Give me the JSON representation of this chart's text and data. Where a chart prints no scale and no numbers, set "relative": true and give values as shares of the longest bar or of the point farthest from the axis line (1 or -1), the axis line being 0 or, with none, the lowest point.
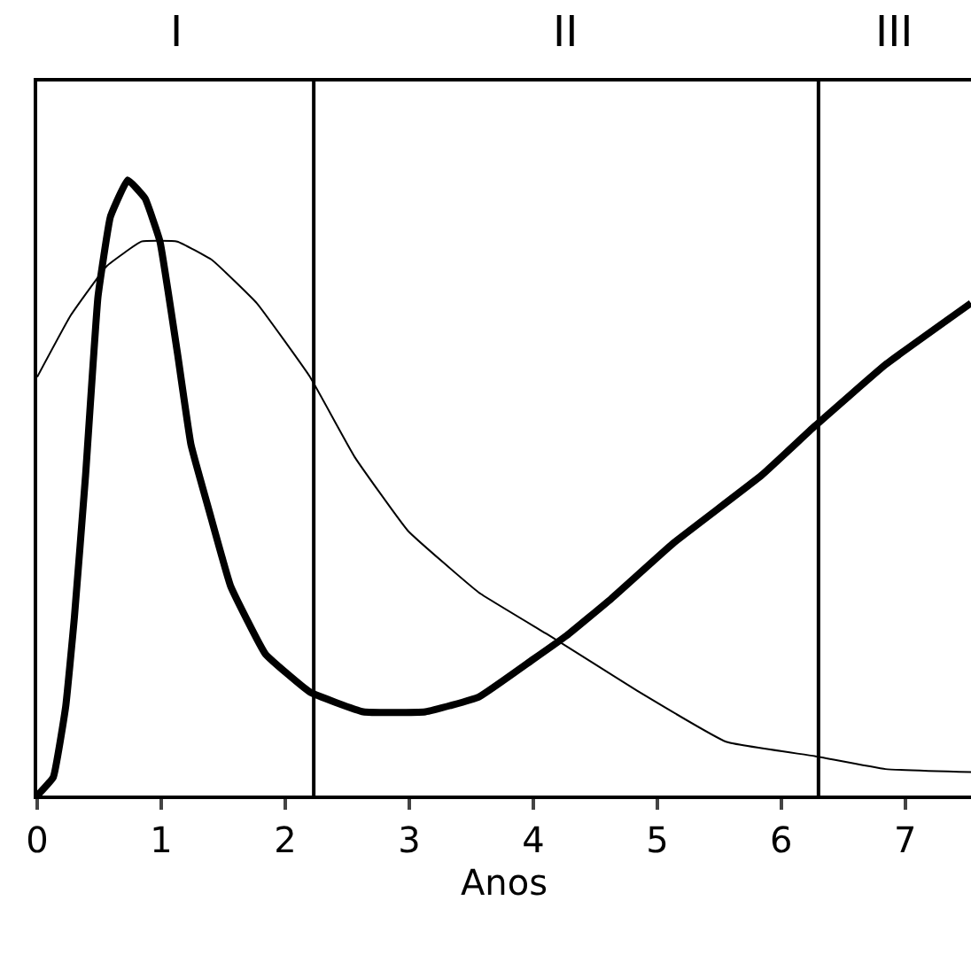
{
  "chart_data": {
    "type": "line",
    "xlabel": "Anos",
    "relative": true,
    "xlim": [
      0,
      7.53
    ],
    "xticks": [
      0,
      1,
      2,
      3,
      4,
      5,
      6,
      7
    ],
    "grid": false,
    "marker": "none",
    "line_style": "solid",
    "series": [
      {
        "color": "#000000",
        "x": [
          0,
          0.13,
          0.23,
          0.3,
          0.39,
          0.49,
          0.59,
          0.73,
          0.87,
          0.99,
          1.13,
          1.24,
          1.39,
          1.56,
          1.84,
          2.2,
          2.63,
          3.13,
          3.56,
          3.99,
          4.27,
          4.63,
          5.13,
          5.84,
          6.27,
          6.84,
          7.53
        ],
        "values": [
          0,
          0.03,
          0.145,
          0.29,
          0.52,
          0.81,
          0.94,
          1,
          0.97,
          0.9,
          0.72,
          0.57,
          0.46,
          0.34,
          0.23,
          0.168,
          0.136,
          0.136,
          0.16,
          0.22,
          0.26,
          0.32,
          0.41,
          0.52,
          0.6,
          0.7,
          0.8
        ]
      },
      {
        "color": "#000000",
        "x": [
          0,
          0.27,
          0.56,
          0.84,
          1.13,
          1.41,
          1.77,
          2.2,
          2.56,
          2.99,
          3.56,
          4.13,
          4.84,
          5.56,
          6.27,
          6.84,
          7.53
        ],
        "values": [
          0.68,
          0.78,
          0.86,
          0.9,
          0.9,
          0.87,
          0.8,
          0.68,
          0.55,
          0.43,
          0.33,
          0.26,
          0.17,
          0.087,
          0.064,
          0.043,
          0.038
        ]
      }
    ],
    "ref_lines": [
      {
        "axis": "x",
        "value": 2.23,
        "color": "#000000"
      },
      {
        "axis": "x",
        "value": 6.3,
        "color": "#000000"
      }
    ],
    "annotations": [
      "I",
      "II",
      "III"
    ]
  }
}
